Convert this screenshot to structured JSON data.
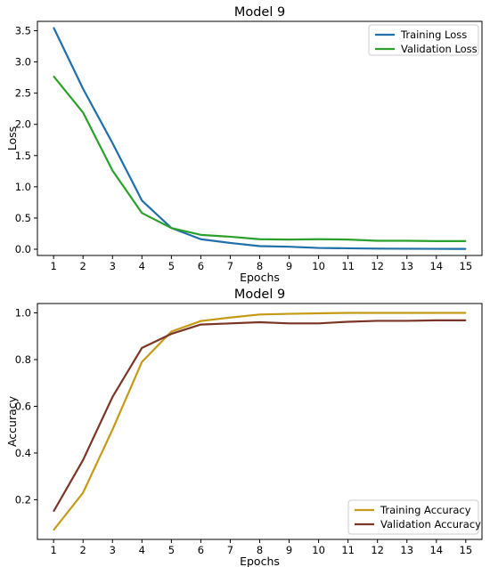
{
  "chart_data": [
    {
      "type": "line",
      "title": "Model 9",
      "xlabel": "Epochs",
      "ylabel": "Loss",
      "x": [
        1,
        2,
        3,
        4,
        5,
        6,
        7,
        8,
        9,
        10,
        11,
        12,
        13,
        14,
        15
      ],
      "ylim": [
        -0.1,
        3.65
      ],
      "yticks": [
        0.0,
        0.5,
        1.0,
        1.5,
        2.0,
        2.5,
        3.0,
        3.5
      ],
      "ytick_labels": [
        "0.0",
        "0.5",
        "1.0",
        "1.5",
        "2.0",
        "2.5",
        "3.0",
        "3.5"
      ],
      "legend_position": "top-right",
      "series": [
        {
          "name": "Training Loss",
          "color": "#1f6fa8",
          "values": [
            3.55,
            2.57,
            1.7,
            0.78,
            0.34,
            0.16,
            0.1,
            0.05,
            0.04,
            0.02,
            0.015,
            0.01,
            0.008,
            0.006,
            0.005
          ]
        },
        {
          "name": "Validation Loss",
          "color": "#2ca02c",
          "values": [
            2.77,
            2.19,
            1.26,
            0.58,
            0.34,
            0.23,
            0.2,
            0.16,
            0.155,
            0.16,
            0.155,
            0.135,
            0.135,
            0.13,
            0.13
          ]
        }
      ]
    },
    {
      "type": "line",
      "title": "Model 9",
      "xlabel": "Epochs",
      "ylabel": "Accuracy",
      "x": [
        1,
        2,
        3,
        4,
        5,
        6,
        7,
        8,
        9,
        10,
        11,
        12,
        13,
        14,
        15
      ],
      "ylim": [
        0.03,
        1.04
      ],
      "yticks": [
        0.2,
        0.4,
        0.6,
        0.8,
        1.0
      ],
      "ytick_labels": [
        "0.2",
        "0.4",
        "0.6",
        "0.8",
        "1.0"
      ],
      "legend_position": "bottom-right",
      "series": [
        {
          "name": "Training Accuracy",
          "color": "#c49a16",
          "values": [
            0.07,
            0.23,
            0.5,
            0.79,
            0.92,
            0.965,
            0.98,
            0.993,
            0.996,
            0.998,
            1.0,
            1.0,
            1.0,
            1.0,
            1.0
          ]
        },
        {
          "name": "Validation Accuracy",
          "color": "#7a3526",
          "values": [
            0.15,
            0.37,
            0.64,
            0.85,
            0.91,
            0.95,
            0.955,
            0.96,
            0.955,
            0.955,
            0.962,
            0.966,
            0.966,
            0.968,
            0.968
          ]
        }
      ]
    }
  ]
}
